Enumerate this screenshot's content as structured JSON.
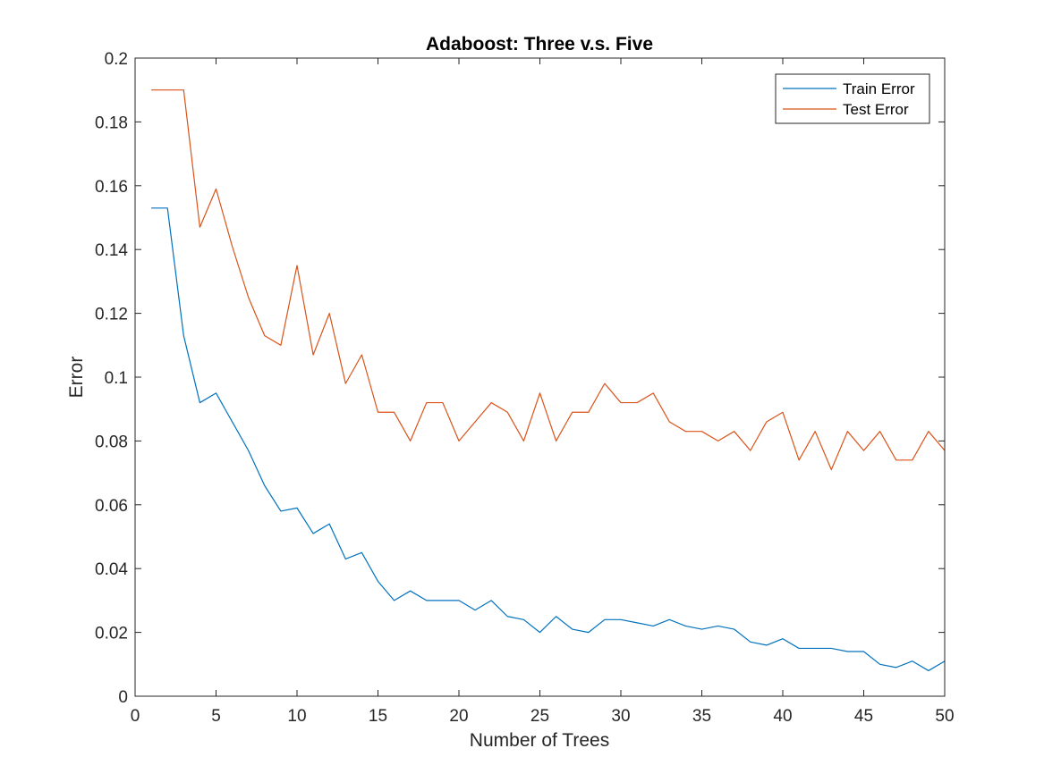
{
  "chart_data": {
    "type": "line",
    "title": "Adaboost: Three v.s. Five",
    "xlabel": "Number of Trees",
    "ylabel": "Error",
    "xlim": [
      0,
      50
    ],
    "ylim": [
      0,
      0.2
    ],
    "xticks": [
      0,
      5,
      10,
      15,
      20,
      25,
      30,
      35,
      40,
      45,
      50
    ],
    "yticks": [
      0,
      0.02,
      0.04,
      0.06,
      0.08,
      0.1,
      0.12,
      0.14,
      0.16,
      0.18,
      0.2
    ],
    "ytick_labels": [
      "0",
      "0.02",
      "0.04",
      "0.06",
      "0.08",
      "0.1",
      "0.12",
      "0.14",
      "0.16",
      "0.18",
      "0.2"
    ],
    "grid": false,
    "legend_position": "top-right",
    "x": [
      1,
      2,
      3,
      4,
      5,
      6,
      7,
      8,
      9,
      10,
      11,
      12,
      13,
      14,
      15,
      16,
      17,
      18,
      19,
      20,
      21,
      22,
      23,
      24,
      25,
      26,
      27,
      28,
      29,
      30,
      31,
      32,
      33,
      34,
      35,
      36,
      37,
      38,
      39,
      40,
      41,
      42,
      43,
      44,
      45,
      46,
      47,
      48,
      49,
      50
    ],
    "series": [
      {
        "name": "Train Error",
        "color": "#0072bd",
        "values": [
          0.153,
          0.153,
          0.113,
          0.092,
          0.095,
          0.086,
          0.077,
          0.066,
          0.058,
          0.059,
          0.051,
          0.054,
          0.043,
          0.045,
          0.036,
          0.03,
          0.033,
          0.03,
          0.03,
          0.03,
          0.027,
          0.03,
          0.025,
          0.024,
          0.02,
          0.025,
          0.021,
          0.02,
          0.024,
          0.024,
          0.023,
          0.022,
          0.024,
          0.022,
          0.021,
          0.022,
          0.021,
          0.017,
          0.016,
          0.018,
          0.015,
          0.015,
          0.015,
          0.014,
          0.014,
          0.01,
          0.009,
          0.011,
          0.008,
          0.011
        ]
      },
      {
        "name": "Test Error",
        "color": "#d95319",
        "values": [
          0.19,
          0.19,
          0.19,
          0.147,
          0.159,
          0.141,
          0.125,
          0.113,
          0.11,
          0.135,
          0.107,
          0.12,
          0.098,
          0.107,
          0.089,
          0.089,
          0.08,
          0.092,
          0.092,
          0.08,
          0.086,
          0.092,
          0.089,
          0.08,
          0.095,
          0.08,
          0.089,
          0.089,
          0.098,
          0.092,
          0.092,
          0.095,
          0.086,
          0.083,
          0.083,
          0.08,
          0.083,
          0.077,
          0.086,
          0.089,
          0.074,
          0.083,
          0.071,
          0.083,
          0.077,
          0.083,
          0.074,
          0.074,
          0.083,
          0.077
        ]
      }
    ]
  }
}
